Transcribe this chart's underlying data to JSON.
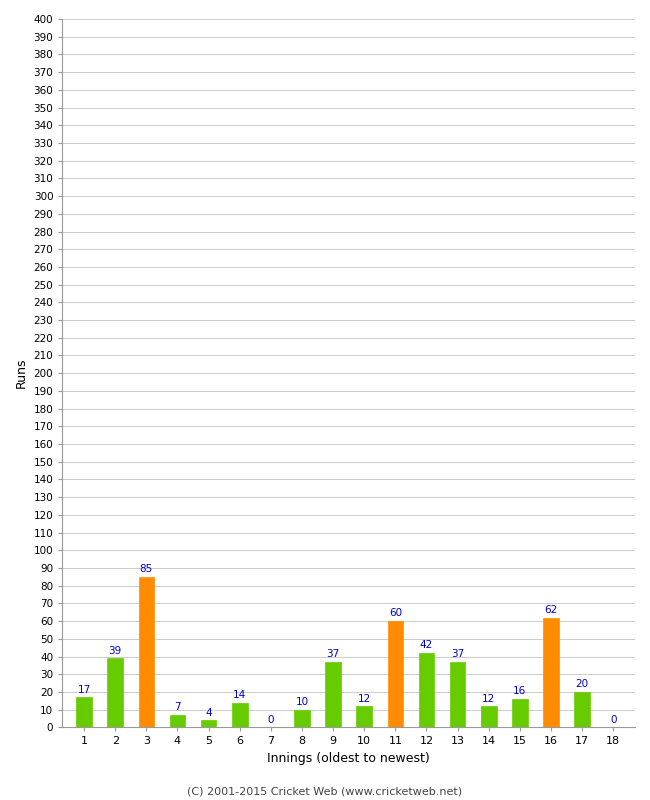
{
  "innings": [
    1,
    2,
    3,
    4,
    5,
    6,
    7,
    8,
    9,
    10,
    11,
    12,
    13,
    14,
    15,
    16,
    17,
    18
  ],
  "values": [
    17,
    39,
    85,
    7,
    4,
    14,
    0,
    10,
    37,
    12,
    60,
    42,
    37,
    12,
    16,
    62,
    20,
    0
  ],
  "bar_colors": [
    "#66cc00",
    "#66cc00",
    "#ff8c00",
    "#66cc00",
    "#66cc00",
    "#66cc00",
    "#66cc00",
    "#66cc00",
    "#66cc00",
    "#66cc00",
    "#ff8c00",
    "#66cc00",
    "#66cc00",
    "#66cc00",
    "#66cc00",
    "#ff8c00",
    "#66cc00",
    "#66cc00"
  ],
  "xlabel": "Innings (oldest to newest)",
  "ylabel": "Runs",
  "ylim": [
    0,
    400
  ],
  "label_color": "#0000cc",
  "background_color": "#ffffff",
  "grid_color": "#cccccc",
  "footer": "(C) 2001-2015 Cricket Web (www.cricketweb.net)"
}
